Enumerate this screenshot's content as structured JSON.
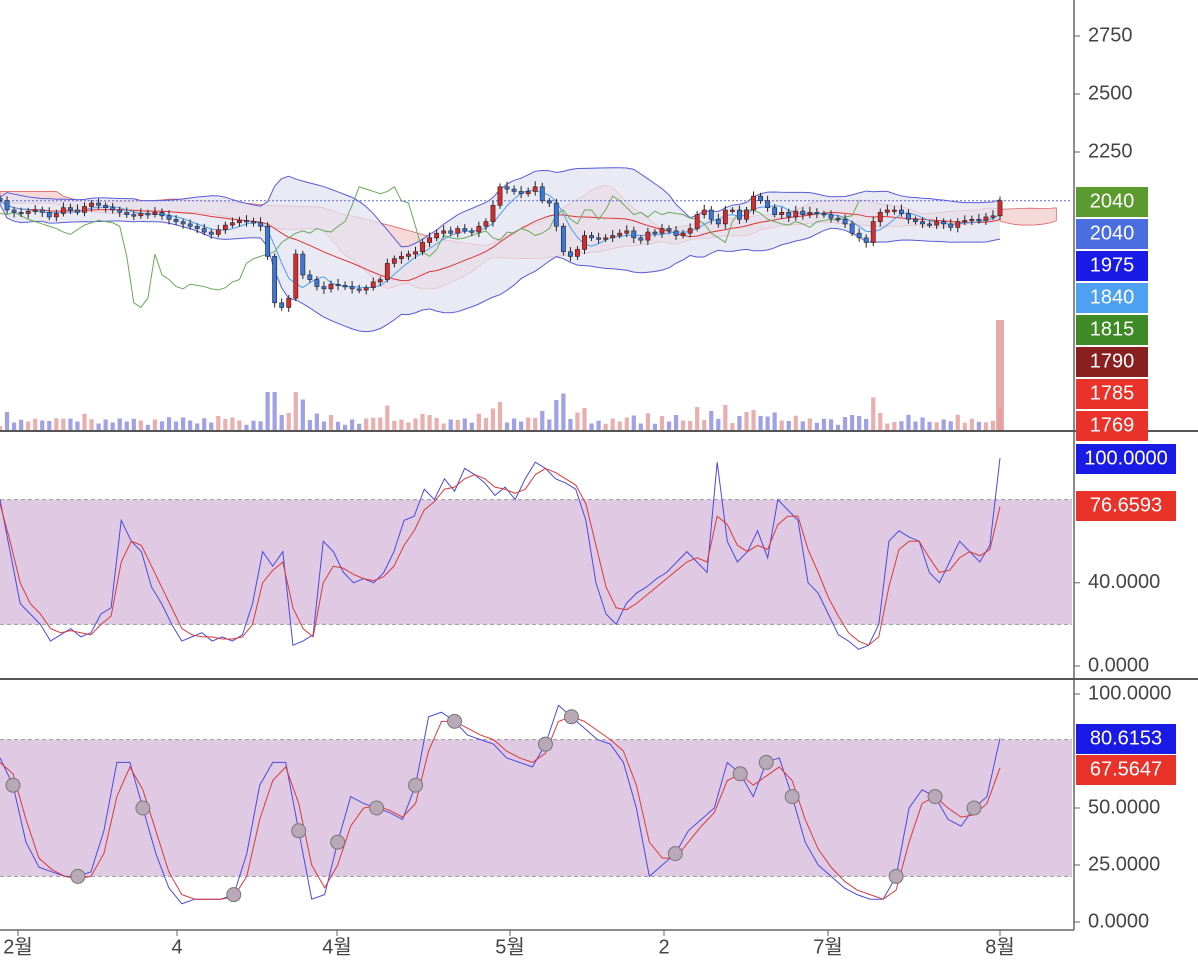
{
  "colors": {
    "up": "#d62c2c",
    "down": "#3a78d8",
    "bollinger": "#5a5ad8",
    "bollinger_fill": "#e3e3f2",
    "cloud_red": "#f3d2d2",
    "cloud_green": "#d6ead2",
    "band_fill": "#dcc3e0",
    "fast_line": "#4a4ae0",
    "slow_line": "#d93a3a",
    "divider": "#555555"
  },
  "price_axis": {
    "ticks": [
      "2750",
      "2500",
      "2250"
    ]
  },
  "price_badges": [
    {
      "label": "2040",
      "color": "#5b9a2e"
    },
    {
      "label": "2040",
      "color": "#4a6ee0"
    },
    {
      "label": "1975",
      "color": "#1a1ae6"
    },
    {
      "label": "1840",
      "color": "#4ea0f0"
    },
    {
      "label": "1815",
      "color": "#3e8a24"
    },
    {
      "label": "1790",
      "color": "#8a1f1f"
    },
    {
      "label": "1785",
      "color": "#e8322a"
    },
    {
      "label": "1769",
      "color": "#e8322a"
    }
  ],
  "stoch1": {
    "ticks": [
      "40.0000",
      "0.0000"
    ],
    "badges": [
      {
        "label": "100.0000",
        "color": "#1a1ae6"
      },
      {
        "label": "76.6593",
        "color": "#e8322a"
      }
    ]
  },
  "stoch2": {
    "ticks": [
      "100.0000",
      "50.0000",
      "25.0000",
      "0.0000"
    ],
    "badges": [
      {
        "label": "80.6153",
        "color": "#1a1ae6"
      },
      {
        "label": "67.5647",
        "color": "#e8322a"
      }
    ]
  },
  "time_axis": {
    "labels": [
      "2월",
      "4",
      "4월",
      "5월",
      "2",
      "7월",
      "8월"
    ]
  },
  "chart_data": [
    {
      "type": "candlestick",
      "panel": "price",
      "yrange": [
        1769,
        2900
      ],
      "indicators": [
        "bollinger",
        "ichimoku-cloud",
        "moving-averages",
        "volume"
      ],
      "reference_line": 2040,
      "close": [
        2040,
        2000,
        1990,
        1985,
        1995,
        2000,
        1990,
        1970,
        1985,
        2010,
        2000,
        1990,
        2015,
        2030,
        2020,
        2010,
        2000,
        1990,
        1980,
        1975,
        1985,
        1980,
        1990,
        1975,
        1960,
        1950,
        1940,
        1930,
        1920,
        1905,
        1895,
        1915,
        1935,
        1945,
        1955,
        1950,
        1945,
        1930,
        1800,
        1600,
        1580,
        1620,
        1810,
        1720,
        1700,
        1670,
        1660,
        1680,
        1675,
        1670,
        1660,
        1655,
        1665,
        1690,
        1700,
        1770,
        1790,
        1800,
        1810,
        1820,
        1860,
        1880,
        1900,
        1910,
        1900,
        1920,
        1910,
        1905,
        1930,
        1950,
        2020,
        2100,
        2090,
        2080,
        2070,
        2080,
        2100,
        2040,
        2030,
        1930,
        1820,
        1800,
        1830,
        1890,
        1880,
        1875,
        1880,
        1890,
        1900,
        1910,
        1880,
        1870,
        1905,
        1900,
        1920,
        1910,
        1890,
        1900,
        1920,
        1980,
        2000,
        1960,
        1940,
        2000,
        2000,
        1960,
        2000,
        2060,
        2040,
        2010,
        1980,
        1990,
        1970,
        1995,
        1980,
        1990,
        1985,
        1980,
        1965,
        1960,
        1940,
        1900,
        1880,
        1860,
        1950,
        1990,
        2000,
        2000,
        1985,
        1960,
        1950,
        1940,
        1935,
        1950,
        1940,
        1925,
        1950,
        1955,
        1960,
        1955,
        1970,
        1975,
        2040
      ]
    },
    {
      "type": "line",
      "panel": "stochastic-fast",
      "yrange": [
        0,
        100
      ],
      "levels": [
        20,
        80
      ],
      "series": [
        {
          "values": [
            80,
            55,
            30,
            25,
            20,
            12,
            15,
            18,
            14,
            16,
            25,
            28,
            70,
            60,
            55,
            38,
            30,
            20,
            12,
            14,
            16,
            12,
            14,
            12,
            15,
            30,
            55,
            48,
            55,
            10,
            12,
            15,
            60,
            55,
            45,
            40,
            42,
            40,
            45,
            55,
            70,
            72,
            85,
            80,
            90,
            84,
            95,
            92,
            88,
            82,
            86,
            80,
            90,
            98,
            95,
            90,
            88,
            85,
            70,
            40,
            25,
            20,
            30,
            35,
            38,
            42,
            45,
            50,
            55,
            50,
            45,
            98,
            60,
            50,
            55,
            65,
            52,
            80,
            75,
            70,
            40,
            35,
            25,
            15,
            12,
            8,
            10,
            20,
            60,
            65,
            62,
            60,
            45,
            40,
            50,
            60,
            55,
            50,
            58,
            100
          ]
        },
        {
          "values": [
            78,
            60,
            40,
            30,
            25,
            18,
            16,
            17,
            16,
            15,
            20,
            24,
            50,
            60,
            58,
            48,
            38,
            28,
            18,
            15,
            14,
            14,
            13,
            13,
            14,
            20,
            40,
            46,
            50,
            28,
            18,
            14,
            40,
            48,
            47,
            44,
            42,
            41,
            43,
            48,
            58,
            65,
            75,
            79,
            85,
            86,
            90,
            92,
            90,
            86,
            85,
            83,
            85,
            92,
            95,
            93,
            90,
            87,
            78,
            58,
            38,
            28,
            27,
            30,
            34,
            38,
            42,
            46,
            50,
            52,
            50,
            72,
            68,
            58,
            55,
            58,
            56,
            68,
            72,
            72,
            56,
            45,
            33,
            24,
            16,
            12,
            10,
            14,
            38,
            56,
            60,
            60,
            52,
            45,
            46,
            52,
            55,
            53,
            56,
            76.6593
          ]
        }
      ]
    },
    {
      "type": "line",
      "panel": "stochastic-slow",
      "yrange": [
        0,
        100
      ],
      "levels": [
        20,
        80
      ],
      "series": [
        {
          "values": [
            72,
            60,
            35,
            24,
            22,
            20,
            20,
            22,
            40,
            70,
            70,
            50,
            30,
            15,
            8,
            10,
            10,
            10,
            12,
            30,
            60,
            70,
            70,
            40,
            10,
            12,
            35,
            55,
            52,
            50,
            48,
            45,
            60,
            90,
            92,
            88,
            82,
            80,
            78,
            72,
            70,
            68,
            78,
            95,
            90,
            85,
            80,
            78,
            70,
            50,
            20,
            25,
            30,
            40,
            45,
            50,
            70,
            65,
            55,
            70,
            72,
            55,
            35,
            25,
            20,
            15,
            12,
            10,
            10,
            20,
            50,
            58,
            55,
            45,
            42,
            50,
            55,
            80.6153
          ]
        },
        {
          "values": [
            70,
            65,
            45,
            28,
            23,
            20,
            19,
            20,
            30,
            55,
            68,
            58,
            40,
            22,
            12,
            10,
            10,
            10,
            11,
            20,
            45,
            62,
            68,
            52,
            25,
            15,
            25,
            42,
            50,
            51,
            49,
            46,
            52,
            75,
            88,
            88,
            85,
            82,
            80,
            75,
            72,
            70,
            74,
            88,
            90,
            88,
            84,
            80,
            75,
            60,
            35,
            28,
            28,
            35,
            42,
            48,
            62,
            65,
            60,
            64,
            68,
            62,
            45,
            32,
            24,
            18,
            14,
            12,
            10,
            14,
            35,
            52,
            55,
            50,
            46,
            47,
            52,
            67.5647
          ]
        }
      ]
    }
  ]
}
